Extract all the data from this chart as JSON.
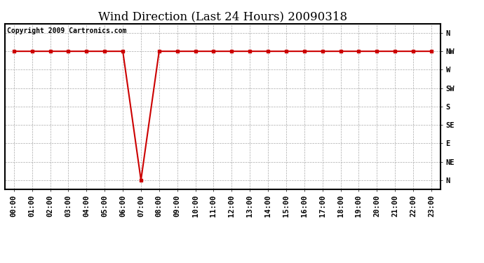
{
  "title": "Wind Direction (Last 24 Hours) 20090318",
  "copyright_text": "Copyright 2009 Cartronics.com",
  "line_color": "#cc0000",
  "marker": "s",
  "marker_size": 3,
  "background_color": "#ffffff",
  "grid_color": "#aaaaaa",
  "ytick_labels": [
    "N",
    "NE",
    "E",
    "SE",
    "S",
    "SW",
    "W",
    "NW",
    "N"
  ],
  "ytick_values": [
    0,
    1,
    2,
    3,
    4,
    5,
    6,
    7,
    8
  ],
  "hours": [
    0,
    1,
    2,
    3,
    4,
    5,
    6,
    7,
    8,
    9,
    10,
    11,
    12,
    13,
    14,
    15,
    16,
    17,
    18,
    19,
    20,
    21,
    22,
    23
  ],
  "wind_values": [
    7,
    7,
    7,
    7,
    7,
    7,
    7,
    0,
    7,
    7,
    7,
    7,
    7,
    7,
    7,
    7,
    7,
    7,
    7,
    7,
    7,
    7,
    7,
    7
  ],
  "xlim": [
    -0.5,
    23.5
  ],
  "ylim": [
    -0.5,
    8.5
  ],
  "title_fontsize": 12,
  "tick_fontsize": 7.5,
  "copyright_fontsize": 7
}
